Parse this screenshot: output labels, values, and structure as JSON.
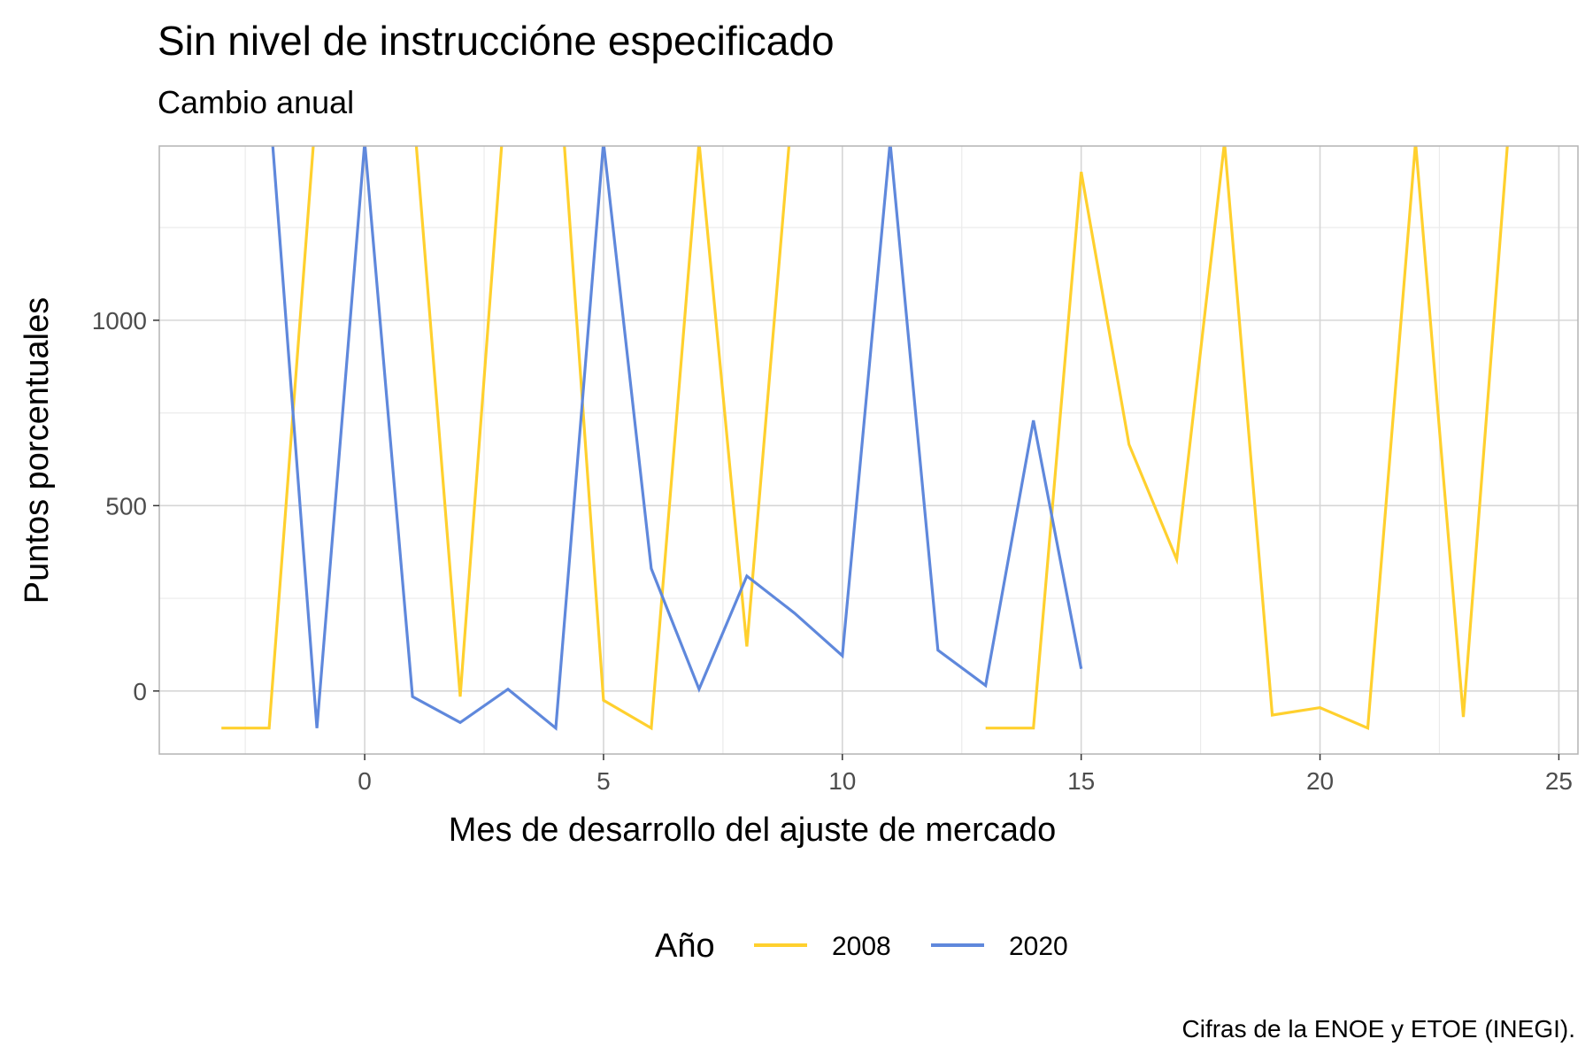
{
  "chart_data": {
    "type": "line",
    "title": "Sin nivel de instruccióne especificado",
    "subtitle": "Cambio anual",
    "xlabel": "Mes de desarrollo del ajuste de mercado",
    "ylabel": "Puntos porcentuales",
    "caption": "Cifras de la ENOE y ETOE (INEGI).",
    "legend_title": "Año",
    "legend_position": "bottom",
    "grid": true,
    "xlim": [
      -4.3,
      25.4
    ],
    "ylim": [
      -170,
      1470
    ],
    "x_ticks": [
      0,
      5,
      10,
      15,
      20,
      25
    ],
    "y_ticks": [
      0,
      500,
      1000
    ],
    "series": [
      {
        "name": "2008",
        "color": "#FFD02E",
        "x": [
          -3,
          -2,
          -1,
          0,
          1,
          2,
          3,
          4,
          5,
          6,
          7,
          8,
          9,
          10,
          11,
          12,
          13,
          14,
          15,
          16,
          17,
          18,
          19,
          20,
          21,
          22,
          23,
          24
        ],
        "y": [
          -100,
          -100,
          1600,
          1900,
          1600,
          -15,
          1700,
          1800,
          -25,
          -100,
          1480,
          120,
          1650,
          null,
          null,
          null,
          -100,
          -100,
          1400,
          665,
          355,
          1480,
          -65,
          -45,
          -100,
          1480,
          -70,
          1600
        ]
      },
      {
        "name": "2020",
        "color": "#5F88DC",
        "x": [
          -3,
          -2,
          -1,
          0,
          1,
          2,
          3,
          4,
          5,
          6,
          7,
          8,
          9,
          10,
          11,
          12,
          13,
          14,
          15
        ],
        "y": [
          1600,
          1600,
          -100,
          1480,
          -15,
          -85,
          5,
          -100,
          1480,
          330,
          5,
          310,
          210,
          95,
          1480,
          110,
          15,
          730,
          60
        ]
      }
    ]
  }
}
